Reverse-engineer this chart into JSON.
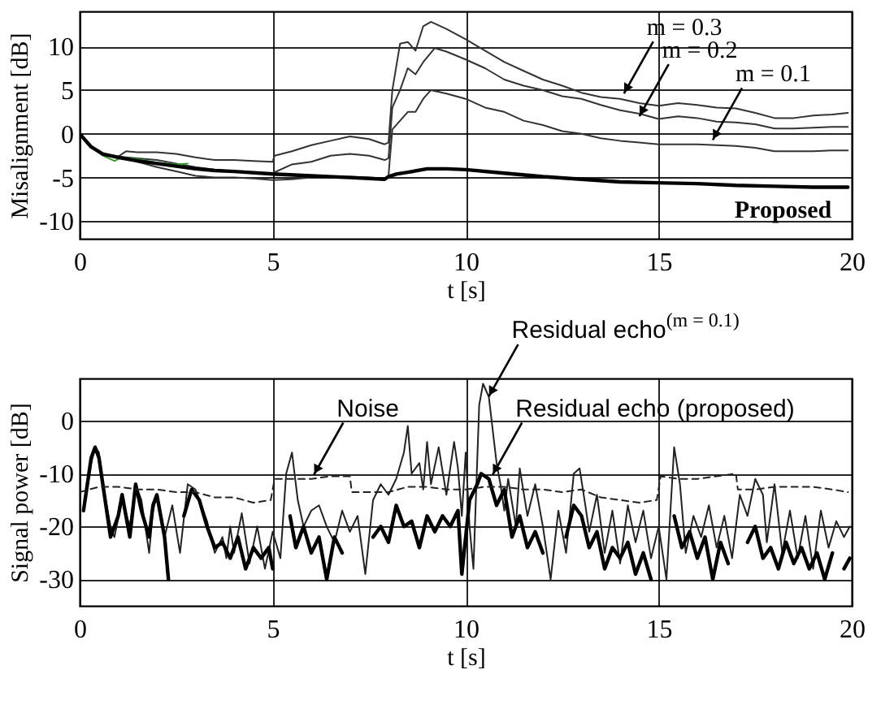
{
  "chart_data": [
    {
      "type": "line",
      "xlabel": "t [s]",
      "ylabel": "Misalignment [dB]",
      "xlim": [
        0,
        20
      ],
      "ylim": [
        -12,
        14
      ],
      "xticks": [
        0,
        5,
        10,
        15,
        20
      ],
      "yticks": [
        -10,
        -5,
        0,
        5,
        10
      ],
      "grid": true,
      "legend": false,
      "series": [
        {
          "color": "#333333",
          "x": [
            0,
            0.3,
            0.6,
            1,
            1.2,
            1.5,
            2,
            2.5,
            3,
            3.5,
            4,
            4.5,
            5,
            5.05,
            5.5,
            6,
            6.5,
            7,
            7.5,
            7.9,
            8,
            8.1,
            8.3,
            8.5,
            8.7,
            8.9,
            9.1,
            9.5,
            10,
            10.5,
            11,
            11.5,
            12,
            12.5,
            13,
            13.5,
            14,
            14.5,
            15,
            15.5,
            16,
            16.5,
            17,
            17.5,
            18,
            18.5,
            19,
            19.5,
            19.9
          ],
          "values": [
            0,
            -1.5,
            -2.3,
            -2.6,
            -2.0,
            -2.1,
            -2.1,
            -2.3,
            -2.7,
            -3.0,
            -3.0,
            -3.1,
            -3.2,
            -2.5,
            -2.0,
            -1.3,
            -0.8,
            -0.3,
            -0.6,
            -1.2,
            -1.0,
            5,
            10.3,
            10.5,
            9.5,
            12.3,
            12.8,
            12.0,
            10.8,
            9.5,
            8.2,
            7.2,
            6.2,
            5.5,
            4.7,
            4.2,
            4.0,
            3.5,
            3.2,
            3.5,
            3.3,
            3.0,
            2.9,
            2.4,
            1.8,
            1.8,
            2.1,
            2.2,
            2.4
          ]
        },
        {
          "color": "#333333",
          "x": [
            0,
            0.3,
            0.6,
            1,
            1.5,
            2,
            2.5,
            3,
            3.5,
            4,
            4.5,
            5,
            5.5,
            6,
            6.5,
            7,
            7.5,
            7.9,
            8,
            8.1,
            8.3,
            8.5,
            8.7,
            8.9,
            9.2,
            9.5,
            10,
            10.5,
            11,
            11.5,
            12,
            12.5,
            13,
            13.5,
            14,
            14.5,
            15,
            15.5,
            16,
            16.5,
            17,
            17.5,
            18,
            18.5,
            19,
            19.5,
            19.9
          ],
          "values": [
            0,
            -1.5,
            -2.3,
            -2.6,
            -2.8,
            -3.0,
            -3.4,
            -3.8,
            -4.1,
            -4.3,
            -4.4,
            -4.5,
            -3.5,
            -3.2,
            -2.5,
            -2.3,
            -2.5,
            -3.0,
            -2.8,
            3,
            5,
            7.5,
            6.8,
            8.2,
            9.8,
            9.4,
            8.5,
            7.5,
            6.2,
            5.5,
            5.0,
            4.3,
            4.0,
            3.3,
            2.7,
            2.3,
            1.7,
            2.0,
            1.8,
            1.4,
            1.3,
            1.1,
            0.6,
            0.6,
            0.7,
            0.8,
            0.8
          ]
        },
        {
          "color": "#333333",
          "x": [
            0,
            0.3,
            0.6,
            1,
            1.5,
            2,
            2.5,
            3,
            3.5,
            4,
            4.5,
            5,
            5.5,
            6,
            6.5,
            7,
            7.5,
            7.9,
            8,
            8.1,
            8.3,
            8.5,
            8.7,
            8.9,
            9.1,
            9.5,
            10,
            10.5,
            11,
            11.5,
            12,
            12.5,
            13,
            13.5,
            14,
            14.5,
            15,
            15.5,
            16,
            16.5,
            17,
            17.5,
            18,
            18.5,
            19,
            19.5,
            19.9
          ],
          "values": [
            0,
            -1.5,
            -2.3,
            -2.6,
            -3.2,
            -3.8,
            -4.3,
            -4.8,
            -5.0,
            -5.0,
            -5.1,
            -5.3,
            -5.2,
            -5.0,
            -5.0,
            -4.9,
            -5.0,
            -5.1,
            -4.8,
            0.5,
            1.5,
            2.5,
            2.5,
            4,
            5,
            4.6,
            4.0,
            3.0,
            2.5,
            1.5,
            1.0,
            0.3,
            0,
            -0.5,
            -0.8,
            -1.0,
            -1.2,
            -1.2,
            -1.2,
            -1.3,
            -1.4,
            -1.6,
            -2.0,
            -2.0,
            -2.0,
            -1.9,
            -1.9
          ]
        },
        {
          "color": "#339933",
          "x": [
            0.3,
            0.6,
            0.9,
            1.1,
            1.5,
            2,
            2.5,
            2.8
          ],
          "values": [
            -1.5,
            -2.5,
            -3.1,
            -2.7,
            -2.9,
            -3.3,
            -3.5,
            -3.4
          ]
        },
        {
          "name": "Proposed",
          "color": "#000000",
          "x": [
            0,
            0.3,
            0.6,
            1,
            1.5,
            2,
            2.5,
            3,
            3.5,
            4,
            5,
            6,
            7,
            7.9,
            8,
            8.2,
            8.5,
            9,
            9.5,
            10,
            11,
            12,
            13,
            14,
            15,
            16,
            17,
            18,
            19,
            19.9
          ],
          "values": [
            0,
            -1.5,
            -2.3,
            -2.7,
            -3.1,
            -3.4,
            -3.7,
            -4.0,
            -4.2,
            -4.3,
            -4.6,
            -4.8,
            -5.0,
            -5.2,
            -4.9,
            -4.6,
            -4.4,
            -4.0,
            -4.0,
            -4.1,
            -4.5,
            -4.9,
            -5.2,
            -5.5,
            -5.6,
            -5.7,
            -5.9,
            -6.0,
            -6.1,
            -6.1
          ]
        }
      ],
      "annotations": [
        {
          "text": "m = 0.3",
          "x": 14.1,
          "y": 4.6
        },
        {
          "text": "m = 0.2",
          "x": 14.5,
          "y": 2.0
        },
        {
          "text": "m = 0.1",
          "x": 16.4,
          "y": -0.7
        }
      ]
    },
    {
      "type": "line",
      "xlabel": "t [s]",
      "ylabel": "Signal power [dB]",
      "xlim": [
        0,
        20
      ],
      "ylim": [
        -35,
        8
      ],
      "xticks": [
        0,
        5,
        10,
        15,
        20
      ],
      "yticks": [
        -30,
        -20,
        -10,
        0
      ],
      "grid": true,
      "legend": false,
      "series": [
        {
          "color": "#222222",
          "x": [
            0.1,
            0.3,
            0.4,
            0.5,
            0.6,
            0.8,
            0.9,
            1.1,
            1.3,
            1.45,
            1.6,
            1.8,
            1.9,
            2.0,
            2.2,
            2.4,
            2.6,
            2.8,
            3.0,
            3.3,
            3.5,
            3.7,
            3.8,
            3.9,
            4.0,
            4.2,
            4.4,
            4.6,
            4.8,
            5.0,
            5.2,
            5.35,
            5.5,
            5.65,
            5.8,
            6.0,
            6.2,
            6.4,
            6.6,
            6.8,
            7.0,
            7.2,
            7.4,
            7.6,
            7.8,
            8.0,
            8.2,
            8.4,
            8.5,
            8.6,
            8.8,
            8.9,
            9.0,
            9.1,
            9.3,
            9.5,
            9.7,
            9.8,
            9.9,
            10.0,
            10.1,
            10.2,
            10.35,
            10.45,
            10.6,
            10.8,
            10.9,
            11.0,
            11.1,
            11.3,
            11.4,
            11.6,
            11.8,
            12.0,
            12.2,
            12.4,
            12.6,
            12.8,
            12.95,
            13.1,
            13.2,
            13.4,
            13.6,
            13.8,
            14.0,
            14.2,
            14.4,
            14.6,
            14.8,
            15.0,
            15.2,
            15.4,
            15.55,
            15.7,
            15.9,
            16.1,
            16.3,
            16.5,
            16.7,
            16.9,
            17.1,
            17.3,
            17.5,
            17.7,
            17.8,
            18.0,
            18.2,
            18.4,
            18.6,
            18.8,
            19.0,
            19.2,
            19.4,
            19.6,
            19.8,
            19.95
          ],
          "values": [
            -17,
            -8,
            -5,
            -6,
            -12,
            -20,
            -22,
            -15,
            -20,
            -12,
            -15,
            -25,
            -17,
            -14,
            -22,
            -16,
            -25,
            -12,
            -13,
            -19,
            -25,
            -22,
            -26,
            -20,
            -25,
            -17.5,
            -27,
            -20,
            -28,
            -21,
            -26,
            -10,
            -6,
            -15,
            -20,
            -17,
            -16,
            -20,
            -23,
            -17,
            -21,
            -18,
            -29,
            -15,
            -12,
            -14,
            -11,
            -6,
            -1,
            -10,
            -8,
            -13,
            -4,
            -12,
            -5,
            -14,
            -4,
            -9,
            -18,
            -6,
            -20,
            -28,
            3,
            7,
            4.5,
            -8,
            -12,
            -17,
            -11,
            -20,
            -9,
            -18,
            -12,
            -20,
            -30,
            -17,
            -25,
            -10,
            -9,
            -16,
            -21,
            -14,
            -25,
            -17,
            -27,
            -16,
            -23,
            -17,
            -26,
            -20,
            -30,
            -5,
            -12,
            -25,
            -18,
            -22,
            -16,
            -24,
            -18,
            -26,
            -14,
            -18,
            -11,
            -14,
            -23,
            -12,
            -25,
            -17,
            -26,
            -18,
            -28,
            -17,
            -24,
            -19,
            -22,
            -20
          ]
        },
        {
          "color": "#000000",
          "x": [
            0.1,
            0.3,
            0.4,
            0.5,
            0.6,
            0.8,
            1.0,
            1.1,
            1.3,
            1.45,
            1.6,
            1.8,
            1.9,
            2.0,
            2.2,
            2.3,
            2.4,
            2.6,
            2.7,
            2.9,
            3.1,
            3.3,
            3.5,
            3.7,
            3.9,
            4.1,
            4.3,
            4.5,
            4.7,
            4.9,
            5.0,
            5.1,
            5.3,
            5.45,
            5.6,
            5.8,
            6.0,
            6.2,
            6.4,
            6.6,
            6.8,
            6.9,
            7.1,
            7.2,
            7.4,
            7.6,
            7.8,
            8.0,
            8.2,
            8.4,
            8.6,
            8.8,
            9.0,
            9.2,
            9.4,
            9.6,
            9.8,
            9.9,
            10.1,
            10.3,
            10.4,
            10.6,
            10.8,
            11.0,
            11.2,
            11.4,
            11.6,
            11.8,
            12.0,
            12.2,
            12.4,
            12.6,
            12.8,
            13.0,
            13.2,
            13.4,
            13.6,
            13.8,
            14.0,
            14.2,
            14.4,
            14.6,
            14.8,
            15.0,
            15.2,
            15.4,
            15.6,
            15.8,
            16.0,
            16.2,
            16.4,
            16.6,
            16.8,
            16.9,
            17.1,
            17.3,
            17.5,
            17.7,
            17.9,
            18.1,
            18.3,
            18.5,
            18.7,
            18.9,
            19.1,
            19.3,
            19.5,
            19.6,
            19.8,
            19.95
          ],
          "values": [
            -17,
            -7,
            -5,
            -7,
            -12,
            -22,
            -18,
            -14,
            -22,
            -12,
            -17,
            -22,
            -16,
            -14,
            -22,
            -30,
            null,
            null,
            -18,
            -13,
            -15,
            -20,
            -24,
            -23,
            -26,
            -22,
            -28,
            -24,
            -26,
            -24,
            -28,
            null,
            null,
            -18,
            -24,
            -20,
            -25,
            -22,
            -30,
            -22,
            -25,
            null,
            null,
            null,
            null,
            -22,
            -20,
            -23,
            -16,
            -20,
            -19,
            -24,
            -18,
            -21,
            -18,
            -20,
            -17,
            -29,
            -15,
            -12,
            -10,
            -11,
            -16,
            -13,
            -22,
            -18,
            -24,
            -21,
            -25,
            null,
            null,
            -22,
            -16,
            -18,
            -24,
            -21,
            -28,
            -24,
            -26,
            -23,
            -29,
            -25,
            -30,
            null,
            null,
            -18,
            -24,
            -21,
            -26,
            -22,
            -30,
            -23,
            -27,
            null,
            null,
            -23,
            -20,
            -26,
            -24,
            -28,
            -23,
            -27,
            -24,
            -28,
            -25,
            -30,
            -25,
            null,
            -28,
            -26
          ]
        },
        {
          "color": "#222222",
          "line_style": "dashed",
          "x": [
            0,
            0.5,
            1,
            1.5,
            2,
            2.5,
            3,
            3.5,
            4,
            4.5,
            4.95,
            5.05,
            5.5,
            6,
            6.5,
            7,
            7.05,
            7.5,
            8,
            8.5,
            9,
            9.5,
            10,
            10.5,
            11,
            11.5,
            12,
            12.5,
            13,
            13.5,
            14,
            14.5,
            14.95,
            15.05,
            15.5,
            16,
            16.5,
            17,
            17.05,
            17.5,
            18,
            18.5,
            19,
            19.5,
            19.9
          ],
          "values": [
            -13.5,
            -12.5,
            -12.5,
            -13,
            -13,
            -13.5,
            -13.5,
            -14.5,
            -14.5,
            -15.5,
            -15,
            -11,
            -11,
            -11,
            -10.5,
            -10.5,
            -13.5,
            -13.5,
            -13.5,
            -12.5,
            -12.5,
            -13,
            -13,
            -12.5,
            -12.5,
            -13,
            -13,
            -13.5,
            -13,
            -14.5,
            -15,
            -15.5,
            -15,
            -10.5,
            -11,
            -11,
            -10.5,
            -10,
            -13,
            -13,
            -12.5,
            -12.5,
            -12.5,
            -13,
            -13.5
          ]
        }
      ],
      "annotations": [
        {
          "text": "Noise",
          "x": 6.07,
          "y": -10.2
        },
        {
          "text": "Residual echo$^{(m = 0.1)}$",
          "x": 10.6,
          "y": 4.6
        },
        {
          "text": "Residual echo (proposed)",
          "x": 10.7,
          "y": -10.2
        }
      ]
    }
  ]
}
